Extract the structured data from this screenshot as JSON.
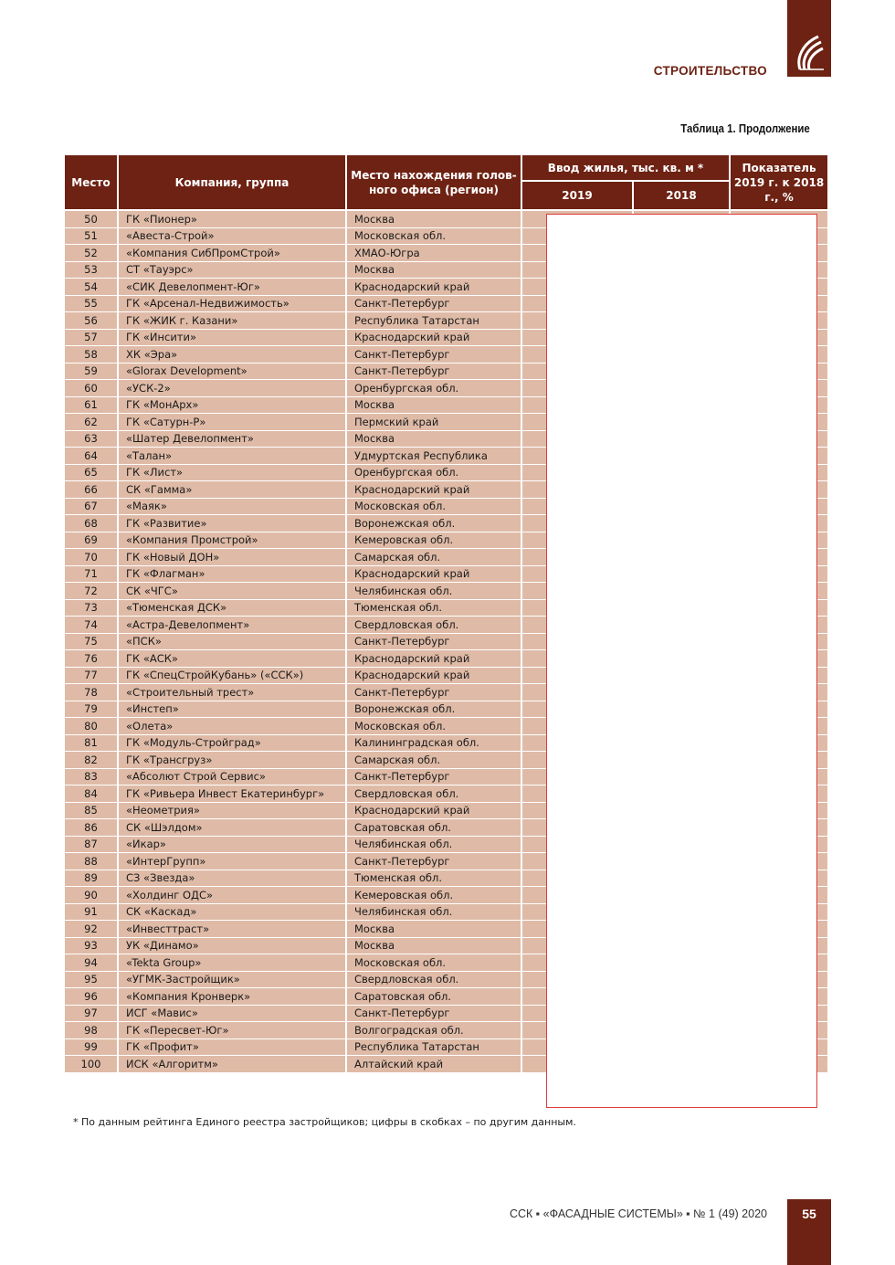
{
  "header": {
    "section": "СТРОИТЕЛЬСТВО",
    "caption": "Таблица 1. Продолжение",
    "brand_color": "#6e2213"
  },
  "table": {
    "columns": {
      "rank": "Место",
      "company": "Компания, группа",
      "region": "Место нахождения голов-ного офиса (регион)",
      "housing": "Ввод жилья, тыс. кв. м *",
      "y2019": "2019",
      "y2018": "2018",
      "ratio": "Показатель 2019 г. к 2018 г., %"
    },
    "rows": [
      {
        "rank": "50",
        "company": "ГК «Пионер»",
        "region": "Москва"
      },
      {
        "rank": "51",
        "company": "«Авеста-Строй»",
        "region": "Московская обл."
      },
      {
        "rank": "52",
        "company": "«Компания СибПромСтрой»",
        "region": "ХМАО-Югра"
      },
      {
        "rank": "53",
        "company": "СТ «Тауэрс»",
        "region": "Москва"
      },
      {
        "rank": "54",
        "company": "«СИК Девелопмент-Юг»",
        "region": "Краснодарский край"
      },
      {
        "rank": "55",
        "company": "ГК «Арсенал-Недвижимость»",
        "region": "Санкт-Петербург"
      },
      {
        "rank": "56",
        "company": "ГК «ЖИК г. Казани»",
        "region": "Республика Татарстан"
      },
      {
        "rank": "57",
        "company": "ГК «Инсити»",
        "region": "Краснодарский край"
      },
      {
        "rank": "58",
        "company": "ХК «Эра»",
        "region": "Санкт-Петербург"
      },
      {
        "rank": "59",
        "company": "«Glorax Development»",
        "region": "Санкт-Петербург"
      },
      {
        "rank": "60",
        "company": "«УСК-2»",
        "region": "Оренбургская обл."
      },
      {
        "rank": "61",
        "company": "ГК «МонАрх»",
        "region": "Москва"
      },
      {
        "rank": "62",
        "company": "ГК «Сатурн-Р»",
        "region": "Пермский край"
      },
      {
        "rank": "63",
        "company": "«Шатер Девелопмент»",
        "region": "Москва"
      },
      {
        "rank": "64",
        "company": "«Талан»",
        "region": "Удмуртская Республика"
      },
      {
        "rank": "65",
        "company": "ГК «Лист»",
        "region": "Оренбургская обл."
      },
      {
        "rank": "66",
        "company": "СК «Гамма»",
        "region": "Краснодарский край"
      },
      {
        "rank": "67",
        "company": "«Маяк»",
        "region": "Московская обл."
      },
      {
        "rank": "68",
        "company": "ГК «Развитие»",
        "region": "Воронежская обл."
      },
      {
        "rank": "69",
        "company": "«Компания Промстрой»",
        "region": "Кемеровская обл."
      },
      {
        "rank": "70",
        "company": "ГК «Новый ДОН»",
        "region": "Самарская обл."
      },
      {
        "rank": "71",
        "company": "ГК «Флагман»",
        "region": "Краснодарский край"
      },
      {
        "rank": "72",
        "company": "СК «ЧГС»",
        "region": "Челябинская обл."
      },
      {
        "rank": "73",
        "company": "«Тюменская ДСК»",
        "region": "Тюменская обл."
      },
      {
        "rank": "74",
        "company": "«Астра-Девелопмент»",
        "region": "Свердловская обл."
      },
      {
        "rank": "75",
        "company": "«ПСК»",
        "region": "Санкт-Петербург"
      },
      {
        "rank": "76",
        "company": "ГК «АСК»",
        "region": "Краснодарский край"
      },
      {
        "rank": "77",
        "company": "ГК «СпецСтройКубань» («ССК»)",
        "region": "Краснодарский край"
      },
      {
        "rank": "78",
        "company": "«Строительный трест»",
        "region": "Санкт-Петербург"
      },
      {
        "rank": "79",
        "company": "«Инстеп»",
        "region": "Воронежская обл."
      },
      {
        "rank": "80",
        "company": "«Олета»",
        "region": "Московская обл."
      },
      {
        "rank": "81",
        "company": "ГК «Модуль-Стройград»",
        "region": "Калининградская обл."
      },
      {
        "rank": "82",
        "company": "ГК «Трансгруз»",
        "region": "Самарская обл."
      },
      {
        "rank": "83",
        "company": "«Абсолют Строй Сервис»",
        "region": "Санкт-Петербург"
      },
      {
        "rank": "84",
        "company": "ГК «Ривьера Инвест Екатеринбург»",
        "region": "Свердловская обл."
      },
      {
        "rank": "85",
        "company": "«Неометрия»",
        "region": "Краснодарский край"
      },
      {
        "rank": "86",
        "company": "СК «Шэлдом»",
        "region": "Саратовская обл."
      },
      {
        "rank": "87",
        "company": "«Икар»",
        "region": "Челябинская обл."
      },
      {
        "rank": "88",
        "company": "«ИнтерГрупп»",
        "region": "Санкт-Петербург"
      },
      {
        "rank": "89",
        "company": "СЗ «Звезда»",
        "region": "Тюменская обл."
      },
      {
        "rank": "90",
        "company": "«Холдинг ОДС»",
        "region": "Кемеровская обл."
      },
      {
        "rank": "91",
        "company": "СК «Каскад»",
        "region": "Челябинская обл."
      },
      {
        "rank": "92",
        "company": "«Инвесттраст»",
        "region": "Москва"
      },
      {
        "rank": "93",
        "company": "УК «Динамо»",
        "region": "Москва"
      },
      {
        "rank": "94",
        "company": "«Tekta Group»",
        "region": "Московская обл."
      },
      {
        "rank": "95",
        "company": "«УГМК-Застройщик»",
        "region": "Свердловская обл."
      },
      {
        "rank": "96",
        "company": "«Компания Кронверк»",
        "region": "Саратовская обл."
      },
      {
        "rank": "97",
        "company": "ИСГ «Мавис»",
        "region": "Санкт-Петербург"
      },
      {
        "rank": "98",
        "company": "ГК «Пересвет-Юг»",
        "region": "Волгоградская обл."
      },
      {
        "rank": "99",
        "company": "ГК «Профит»",
        "region": "Республика Татарстан"
      },
      {
        "rank": "100",
        "company": "ИСК «Алгоритм»",
        "region": "Алтайский край"
      }
    ]
  },
  "footnote": "* По данным рейтинга Единого реестра застройщиков; цифры в скобках – по другим данным.",
  "footer": {
    "journal": "ССК ▪ «ФАСАДНЫЕ СИСТЕМЫ» ▪ № 1 (49) 2020",
    "page": "55"
  }
}
